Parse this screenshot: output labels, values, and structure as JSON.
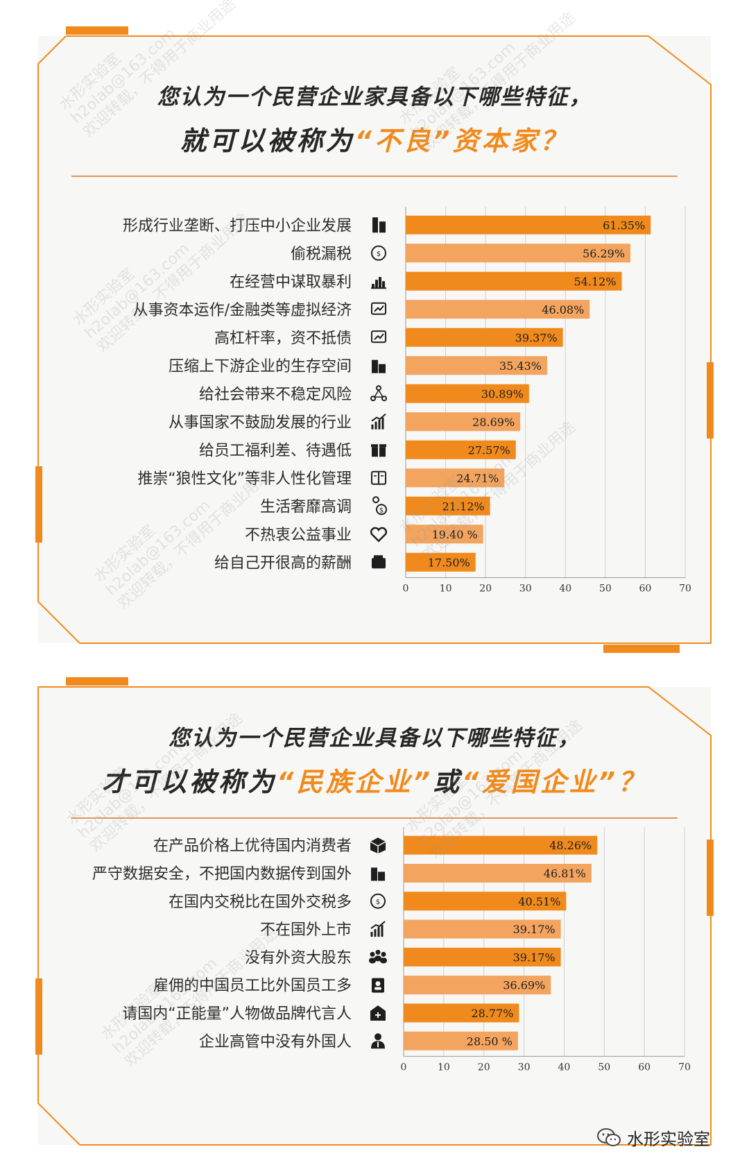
{
  "charts": [
    {
      "title_line1": "您认为一个民营企业家具备以下哪些特征，",
      "title_line2_pre": "就可以被称为",
      "title_line2_highlight": "“不良”资本家",
      "title_line2_post": "？",
      "accent": "#f08a1c"
    },
    {
      "title_line1": "您认为一个民营企业具备以下哪些特征，",
      "title_line2_pre": "才可以被称为",
      "title_line2_highlight": "“民族企业”",
      "title_line2_mid": "或",
      "title_line2_highlight2": "“爱国企业”",
      "title_line2_post": "？",
      "accent": "#f08a1c"
    }
  ],
  "chart_data": [
    {
      "type": "bar",
      "orientation": "horizontal",
      "categories": [
        "形成行业垄断、打压中小企业发展",
        "偷税漏税",
        "在经营中谋取暴利",
        "从事资本运作/金融类等虚拟经济",
        "高杠杆率，资不抵债",
        "压缩上下游企业的生存空间",
        "给社会带来不稳定风险",
        "从事国家不鼓励发展的行业",
        "给员工福利差、待遇低",
        "推崇“狼性文化”等非人性化管理",
        "生活奢靡高调",
        "不热衷公益事业",
        "给自己开很高的薪酬"
      ],
      "values": [
        61.35,
        56.29,
        54.12,
        46.08,
        39.37,
        35.43,
        30.89,
        28.69,
        27.57,
        24.71,
        21.12,
        19.4,
        17.5
      ],
      "value_labels": [
        "61.35%",
        "56.29%",
        "54.12%",
        "46.08%",
        "39.37%",
        "35.43%",
        "30.89%",
        "28.69%",
        "27.57%",
        "24.71%",
        "21.12%",
        "19.40 %",
        "17.50%"
      ],
      "icons": [
        "building-icon",
        "tax-icon",
        "bar-chart-icon",
        "trend-icon",
        "monitor-chart-icon",
        "buildings-icon",
        "network-icon",
        "growth-icon",
        "gift-icon",
        "book-icon",
        "money-person-icon",
        "heart-hands-icon",
        "wallet-icon"
      ],
      "xlim": [
        0,
        70
      ],
      "xticks": [
        0,
        10,
        20,
        30,
        40,
        50,
        60,
        70
      ],
      "bar_colors": [
        "#f08a1c",
        "#f3a45f"
      ],
      "grid": true
    },
    {
      "type": "bar",
      "orientation": "horizontal",
      "categories": [
        "在产品价格上优待国内消费者",
        "严守数据安全，不把国内数据传到国外",
        "在国内交税比在国外交税多",
        "不在国外上市",
        "没有外资大股东",
        "雇佣的中国员工比外国员工多",
        "请国内“正能量”人物做品牌代言人",
        "企业高管中没有外国人"
      ],
      "values": [
        48.26,
        46.81,
        40.51,
        39.17,
        39.17,
        36.69,
        28.77,
        28.5
      ],
      "value_labels": [
        "48.26%",
        "46.81%",
        "40.51%",
        "39.17%",
        "39.17%",
        "36.69%",
        "28.77%",
        "28.50 %"
      ],
      "icons": [
        "box-icon",
        "city-icon",
        "tax-icon",
        "growth-icon",
        "team-icon",
        "id-badge-icon",
        "hospital-icon",
        "manager-icon"
      ],
      "xlim": [
        0,
        70
      ],
      "xticks": [
        0,
        10,
        20,
        30,
        40,
        50,
        60,
        70
      ],
      "bar_colors": [
        "#f08a1c",
        "#f3a45f"
      ],
      "grid": true
    }
  ],
  "watermark": {
    "lines": [
      "水形实验室",
      "h2olab@163.com",
      "欢迎转载，不得用于商业用途"
    ]
  },
  "footer": {
    "brand": "水形实验室",
    "icon": "wechat-icon"
  }
}
